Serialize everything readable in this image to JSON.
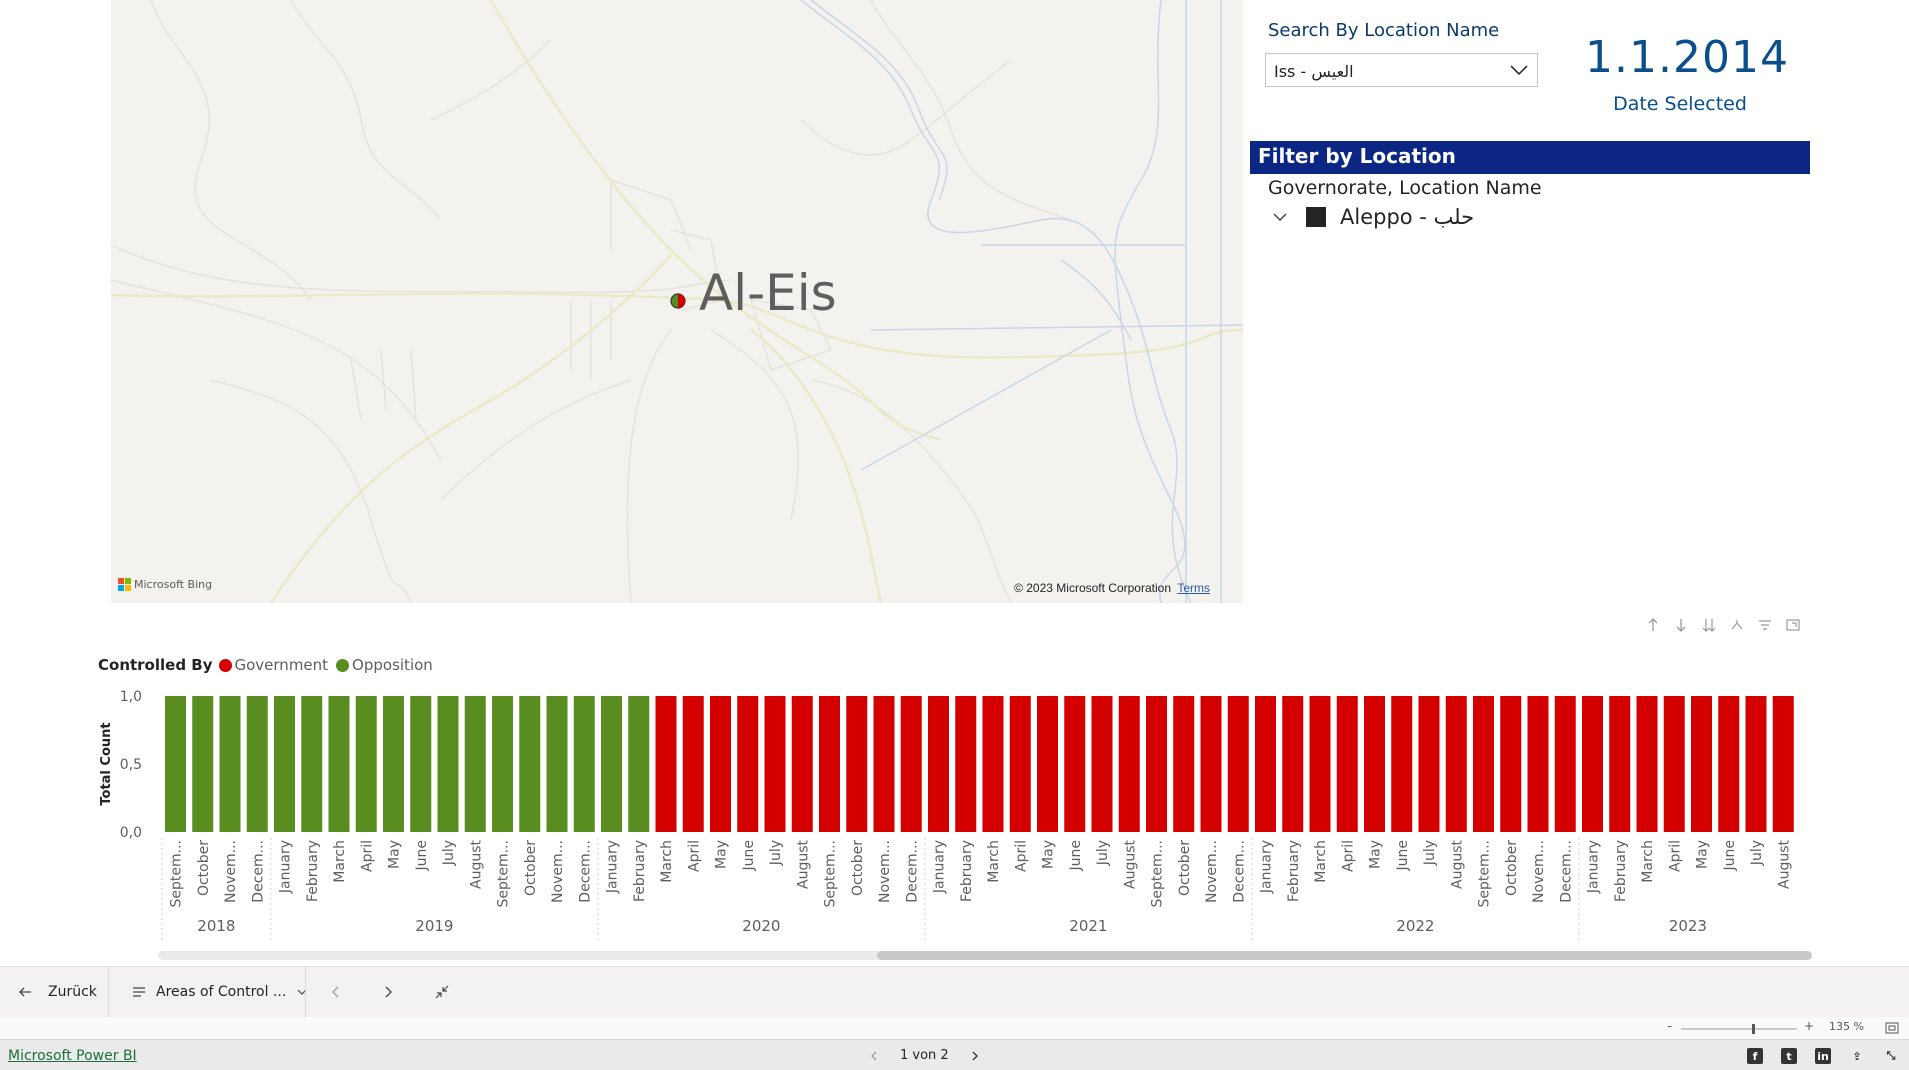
{
  "map": {
    "place_label": "Al-Eis",
    "provider": "Microsoft Bing",
    "copyright": "© 2023 Microsoft Corporation",
    "terms": "Terms",
    "marker_colors": [
      "#5a8d1f",
      "#d40000"
    ]
  },
  "search": {
    "title": "Search By Location Name",
    "selected": "Iss - العيس"
  },
  "date_card": {
    "value": "1.1.2014",
    "label": "Date Selected"
  },
  "filter": {
    "header": "Filter by Location",
    "subheader": "Governorate, Location Name",
    "item": "Aleppo - حلب"
  },
  "legend": {
    "title": "Controlled By",
    "items": [
      {
        "label": "Government",
        "color": "#d40000"
      },
      {
        "label": "Opposition",
        "color": "#5a8d1f"
      }
    ]
  },
  "chart_data": {
    "type": "bar",
    "ylabel": "Total Count",
    "yticks": [
      "1,0",
      "0,5",
      "0,0"
    ],
    "ylim": [
      0,
      1
    ],
    "series": [
      {
        "name": "Opposition",
        "color": "#5a8d1f"
      },
      {
        "name": "Government",
        "color": "#d40000"
      }
    ],
    "categories": [
      "Septem...",
      "October",
      "Novem...",
      "Decem...",
      "January",
      "February",
      "March",
      "April",
      "May",
      "June",
      "July",
      "August",
      "Septem...",
      "October",
      "Novem...",
      "Decem...",
      "January",
      "February",
      "March",
      "April",
      "May",
      "June",
      "July",
      "August",
      "Septem...",
      "October",
      "Novem...",
      "Decem...",
      "January",
      "February",
      "March",
      "April",
      "May",
      "June",
      "July",
      "August",
      "Septem...",
      "October",
      "Novem...",
      "Decem...",
      "January",
      "February",
      "March",
      "April",
      "May",
      "June",
      "July",
      "August",
      "Septem...",
      "October",
      "Novem...",
      "Decem...",
      "January",
      "February",
      "March",
      "April",
      "May",
      "June",
      "July",
      "August"
    ],
    "values": [
      1,
      1,
      1,
      1,
      1,
      1,
      1,
      1,
      1,
      1,
      1,
      1,
      1,
      1,
      1,
      1,
      1,
      1,
      1,
      1,
      1,
      1,
      1,
      1,
      1,
      1,
      1,
      1,
      1,
      1,
      1,
      1,
      1,
      1,
      1,
      1,
      1,
      1,
      1,
      1,
      1,
      1,
      1,
      1,
      1,
      1,
      1,
      1,
      1,
      1,
      1,
      1,
      1,
      1,
      1,
      1,
      1,
      1,
      1,
      1
    ],
    "controlled_by": [
      "Opposition",
      "Opposition",
      "Opposition",
      "Opposition",
      "Opposition",
      "Opposition",
      "Opposition",
      "Opposition",
      "Opposition",
      "Opposition",
      "Opposition",
      "Opposition",
      "Opposition",
      "Opposition",
      "Opposition",
      "Opposition",
      "Opposition",
      "Opposition",
      "Government",
      "Government",
      "Government",
      "Government",
      "Government",
      "Government",
      "Government",
      "Government",
      "Government",
      "Government",
      "Government",
      "Government",
      "Government",
      "Government",
      "Government",
      "Government",
      "Government",
      "Government",
      "Government",
      "Government",
      "Government",
      "Government",
      "Government",
      "Government",
      "Government",
      "Government",
      "Government",
      "Government",
      "Government",
      "Government",
      "Government",
      "Government",
      "Government",
      "Government",
      "Government",
      "Government",
      "Government",
      "Government",
      "Government",
      "Government",
      "Government",
      "Government"
    ],
    "years": [
      {
        "label": "2018",
        "count": 4
      },
      {
        "label": "2019",
        "count": 12
      },
      {
        "label": "2020",
        "count": 12
      },
      {
        "label": "2021",
        "count": 12
      },
      {
        "label": "2022",
        "count": 12
      },
      {
        "label": "2023",
        "count": 8
      }
    ]
  },
  "nav": {
    "back": "Zurück",
    "page_menu": "Areas of Control ..."
  },
  "zoom": {
    "level": "135 %",
    "minus": "-",
    "plus": "+"
  },
  "footer": {
    "brand": "Microsoft Power BI",
    "pager": "1 von 2",
    "social": [
      "facebook-icon",
      "twitter-icon",
      "linkedin-icon",
      "share-icon",
      "fullscreen-icon"
    ]
  }
}
